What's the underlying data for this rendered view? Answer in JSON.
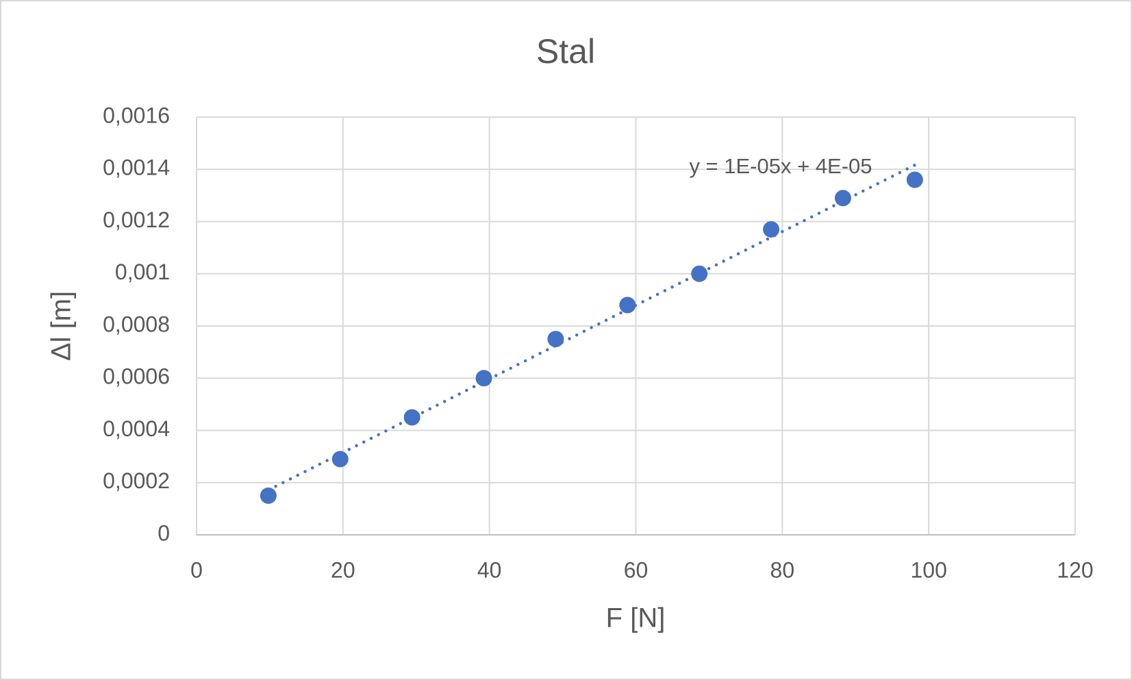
{
  "chart_data": {
    "type": "scatter",
    "title": "Stal",
    "x_label": "F [N]",
    "y_label": "Δl [m]",
    "trendline_label": "y = 1E-05x + 4E-05",
    "trendline": "linear",
    "series": [
      {
        "color": "#4472c4",
        "x": [
          9.81,
          19.62,
          29.43,
          39.24,
          49.05,
          58.86,
          68.67,
          78.48,
          88.29,
          98.1
        ],
        "values": [
          0.00015,
          0.00029,
          0.00045,
          0.0006,
          0.00075,
          0.00088,
          0.001,
          0.00117,
          0.00129,
          0.00136
        ]
      }
    ],
    "xlim": [
      0,
      120
    ],
    "xticks": [
      0,
      20,
      40,
      60,
      80,
      100,
      120
    ],
    "ylim": [
      0,
      0.0016
    ],
    "yticks": [
      0,
      {
        "value": 0.0002,
        "label": "0,0002"
      },
      {
        "value": 0.0004,
        "label": "0,0004"
      },
      {
        "value": 0.0006,
        "label": "0,0006"
      },
      {
        "value": 0.0008,
        "label": "0,0008"
      },
      {
        "value": 0.001,
        "label": "0,001"
      },
      {
        "value": 0.0012,
        "label": "0,0012"
      },
      {
        "value": 0.0014,
        "label": "0,0014"
      },
      {
        "value": 0.0016,
        "label": "0,0016"
      }
    ],
    "grid": true
  }
}
